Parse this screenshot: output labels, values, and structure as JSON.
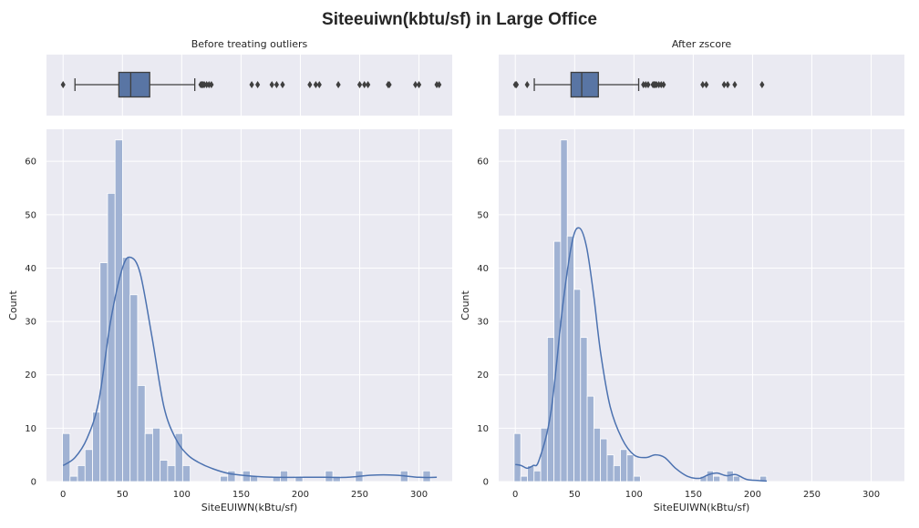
{
  "figure": {
    "title": "Siteeuiwn(kbtu/sf) in Large Office"
  },
  "chart_data": [
    {
      "type": "box",
      "title": "Before treating outliers",
      "xlim": [
        -14,
        328
      ],
      "x_ticks": [
        0,
        50,
        100,
        150,
        200,
        250,
        300
      ],
      "box": {
        "whisker_low": 10,
        "q1": 47,
        "median": 57,
        "q3": 73,
        "whisker_high": 111
      },
      "fliers": [
        0,
        116,
        117,
        118,
        119,
        121,
        123,
        125,
        159,
        164,
        176,
        180,
        185,
        208,
        213,
        216,
        232,
        250,
        254,
        257,
        274,
        275,
        297,
        300,
        315,
        317
      ]
    },
    {
      "type": "bar",
      "title": "",
      "xlabel": "SiteEUIWN(kBtu/sf)",
      "ylabel": "Count",
      "xlim": [
        -14,
        328
      ],
      "ylim": [
        0,
        66
      ],
      "x_ticks": [
        0,
        50,
        100,
        150,
        200,
        250,
        300
      ],
      "y_ticks": [
        0,
        10,
        20,
        30,
        40,
        50,
        60
      ],
      "bin_width": 6.33,
      "bin_start": -0.5,
      "values": [
        9,
        1,
        3,
        6,
        13,
        41,
        54,
        64,
        42,
        35,
        18,
        9,
        10,
        4,
        3,
        9,
        3,
        0,
        0,
        0,
        0,
        1,
        2,
        0,
        2,
        1,
        0,
        0,
        1,
        2,
        0,
        1,
        0,
        0,
        0,
        2,
        1,
        0,
        0,
        2,
        0,
        0,
        0,
        0,
        0,
        2,
        0,
        0,
        2,
        0
      ],
      "kde": {
        "x": [
          0,
          10,
          20,
          30,
          40,
          50,
          57,
          65,
          75,
          85,
          95,
          105,
          115,
          125,
          140,
          160,
          180,
          200,
          220,
          240,
          260,
          280,
          300,
          315
        ],
        "y": [
          3,
          4.5,
          8,
          15,
          30,
          40,
          42,
          39,
          27,
          14,
          8,
          5,
          3.5,
          2.5,
          1.5,
          1,
          0.8,
          0.8,
          0.8,
          0.8,
          1.2,
          1.2,
          0.8,
          0.8
        ]
      }
    },
    {
      "type": "box",
      "title": "After zscore",
      "xlim": [
        -14,
        328
      ],
      "x_ticks": [
        0,
        50,
        100,
        150,
        200,
        250,
        300
      ],
      "box": {
        "whisker_low": 16,
        "q1": 47,
        "median": 56,
        "q3": 70,
        "whisker_high": 104
      },
      "fliers": [
        0,
        1,
        10,
        108,
        110,
        112,
        116,
        117,
        118,
        119,
        121,
        123,
        125,
        158,
        161,
        176,
        179,
        185,
        208
      ]
    },
    {
      "type": "bar",
      "title": "",
      "xlabel": "SiteEUIWN(kBtu/sf)",
      "ylabel": "Count",
      "xlim": [
        -14,
        328
      ],
      "ylim": [
        0,
        66
      ],
      "x_ticks": [
        0,
        50,
        100,
        150,
        200,
        250,
        300
      ],
      "y_ticks": [
        0,
        10,
        20,
        30,
        40,
        50,
        60
      ],
      "bin_width": 5.6,
      "bin_start": -1,
      "values": [
        9,
        1,
        3,
        2,
        10,
        27,
        45,
        64,
        46,
        36,
        27,
        16,
        10,
        8,
        5,
        3,
        6,
        5,
        1,
        0,
        0,
        0,
        0,
        0,
        0,
        0,
        0,
        0,
        1,
        2,
        1,
        0,
        2,
        1,
        0,
        0,
        0,
        1
      ],
      "kde": {
        "x": [
          0,
          5,
          10,
          15,
          20,
          30,
          40,
          48,
          54,
          60,
          66,
          72,
          80,
          90,
          100,
          110,
          118,
          126,
          135,
          145,
          155,
          163,
          170,
          178,
          186,
          195,
          205,
          212
        ],
        "y": [
          3.2,
          3,
          2.5,
          3,
          4,
          13,
          33,
          45,
          47.5,
          44,
          35,
          24,
          14,
          8,
          5,
          4.5,
          5,
          4.5,
          2.5,
          1,
          0.6,
          1.3,
          1.6,
          1.1,
          1.3,
          0.4,
          0.2,
          0.1
        ]
      }
    }
  ]
}
